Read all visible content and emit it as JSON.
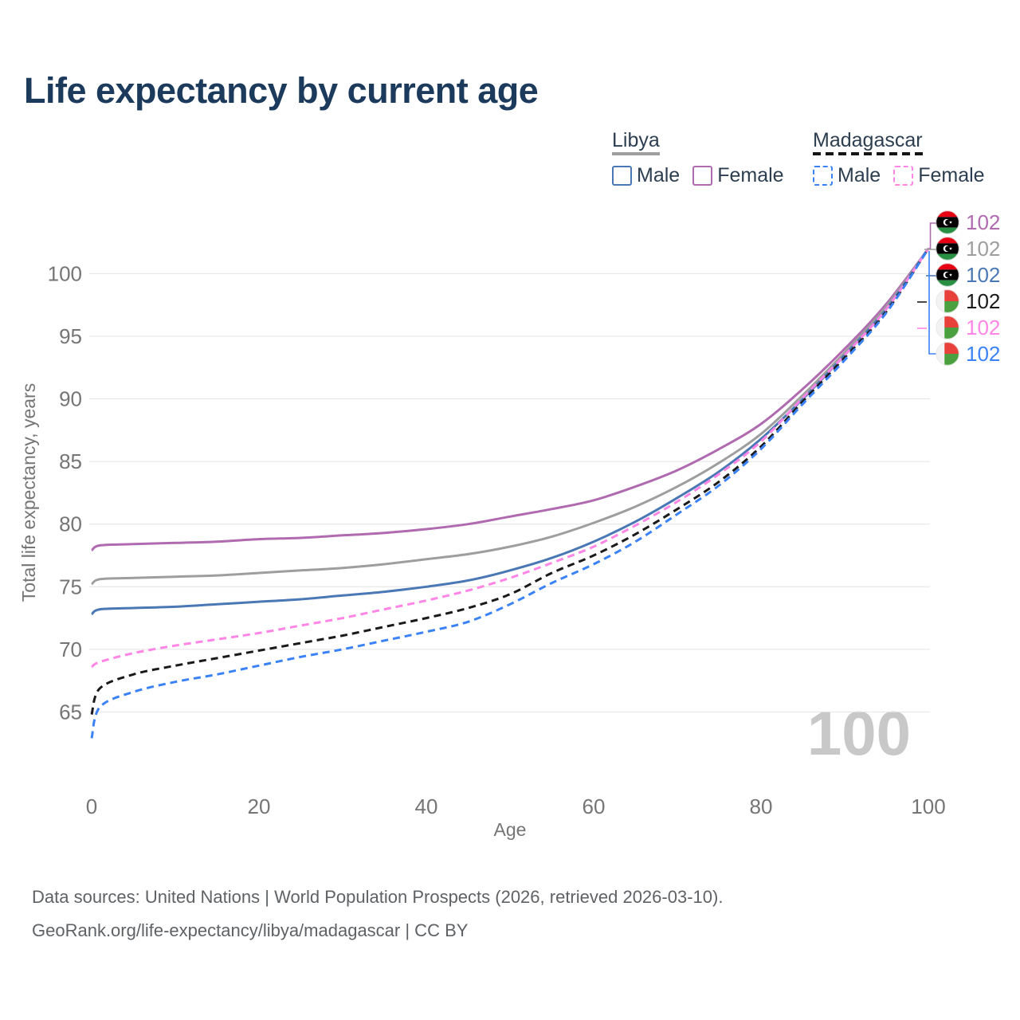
{
  "title": "Life expectancy by current age",
  "legend": {
    "groups": [
      {
        "label": "Libya",
        "line_style": "solid",
        "line_color": "#9e9e9e",
        "items": [
          {
            "label": "Male",
            "color": "#4a78b5",
            "dashed": false
          },
          {
            "label": "Female",
            "color": "#b06ab0",
            "dashed": false
          }
        ]
      },
      {
        "label": "Madagascar",
        "line_style": "dashed",
        "line_color": "#141414",
        "items": [
          {
            "label": "Male",
            "color": "#3b82f6",
            "dashed": true
          },
          {
            "label": "Female",
            "color": "#ff85e6",
            "dashed": true
          }
        ]
      }
    ]
  },
  "watermark": "100",
  "chart_data": {
    "type": "line",
    "title": "Life expectancy by current age",
    "xlabel": "Age",
    "ylabel": "Total life expectancy, years",
    "xticks": [
      0,
      20,
      40,
      60,
      80,
      100
    ],
    "yticks": [
      65,
      70,
      75,
      80,
      85,
      90,
      95,
      100
    ],
    "xlim": [
      0,
      100
    ],
    "ylim": [
      62.5,
      103.5
    ],
    "grid": "horizontal",
    "legend_position": "top-right",
    "x": [
      0,
      1,
      5,
      10,
      15,
      20,
      25,
      30,
      35,
      40,
      45,
      50,
      55,
      60,
      65,
      70,
      75,
      80,
      85,
      90,
      95,
      100
    ],
    "series": [
      {
        "name": "Libya Female",
        "country": "Libya",
        "sex": "female",
        "flag": "libya",
        "color": "#b06ab0",
        "dashed": false,
        "end_value": "102",
        "values": [
          77.9,
          78.3,
          78.4,
          78.5,
          78.6,
          78.8,
          78.9,
          79.1,
          79.3,
          79.6,
          80.0,
          80.6,
          81.2,
          81.9,
          83.0,
          84.3,
          86.0,
          88.0,
          90.8,
          94.0,
          97.6,
          102
        ]
      },
      {
        "name": "Libya Both sexes",
        "country": "Libya",
        "sex": "both",
        "flag": "libya",
        "color": "#9e9e9e",
        "dashed": false,
        "end_value": "102",
        "values": [
          75.2,
          75.6,
          75.7,
          75.8,
          75.9,
          76.1,
          76.3,
          76.5,
          76.8,
          77.2,
          77.6,
          78.2,
          79.0,
          80.1,
          81.4,
          83.0,
          84.9,
          87.2,
          90.3,
          93.7,
          97.4,
          102
        ]
      },
      {
        "name": "Libya Male",
        "country": "Libya",
        "sex": "male",
        "flag": "libya",
        "color": "#4a78b5",
        "dashed": false,
        "end_value": "102",
        "values": [
          72.8,
          73.2,
          73.3,
          73.4,
          73.6,
          73.8,
          74.0,
          74.3,
          74.6,
          75.0,
          75.5,
          76.3,
          77.3,
          78.6,
          80.2,
          82.1,
          84.2,
          86.8,
          90.0,
          93.5,
          97.2,
          102
        ]
      },
      {
        "name": "Madagascar Both sexes",
        "country": "Madagascar",
        "sex": "both",
        "flag": "madagascar",
        "color": "#1a1a1a",
        "dashed": true,
        "end_value": "102",
        "values": [
          64.8,
          66.9,
          68.0,
          68.7,
          69.3,
          69.9,
          70.5,
          71.1,
          71.8,
          72.5,
          73.3,
          74.4,
          76.1,
          77.5,
          79.2,
          81.2,
          83.4,
          86.2,
          89.8,
          93.3,
          97.0,
          102
        ]
      },
      {
        "name": "Madagascar Female",
        "country": "Madagascar",
        "sex": "female",
        "flag": "madagascar",
        "color": "#ff85e6",
        "dashed": true,
        "end_value": "102",
        "values": [
          68.6,
          69.0,
          69.7,
          70.3,
          70.8,
          71.3,
          71.9,
          72.5,
          73.2,
          73.9,
          74.7,
          75.7,
          76.9,
          78.2,
          79.9,
          81.8,
          84.0,
          86.6,
          90.1,
          93.5,
          97.2,
          102
        ]
      },
      {
        "name": "Madagascar Male",
        "country": "Madagascar",
        "sex": "male",
        "flag": "madagascar",
        "color": "#3b82f6",
        "dashed": true,
        "end_value": "102",
        "values": [
          62.9,
          65.4,
          66.6,
          67.4,
          68.0,
          68.7,
          69.4,
          70.0,
          70.7,
          71.4,
          72.2,
          73.6,
          75.3,
          76.8,
          78.6,
          80.8,
          83.1,
          86.0,
          89.6,
          93.1,
          96.9,
          102
        ]
      }
    ]
  },
  "footer": {
    "line1": "Data sources: United Nations | World Population Prospects (2026, retrieved 2026-03-10).",
    "line2": "GeoRank.org/life-expectancy/libya/madagascar | CC BY"
  }
}
